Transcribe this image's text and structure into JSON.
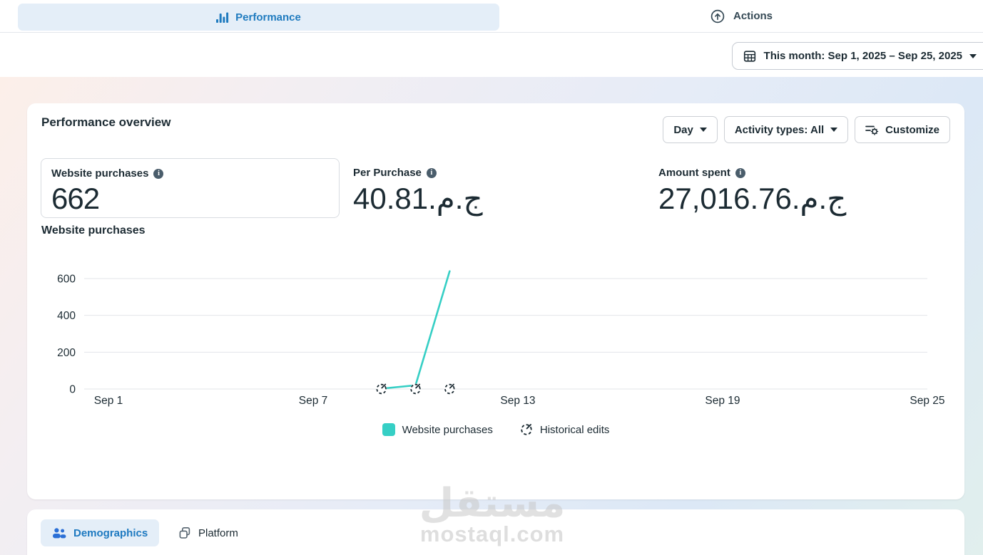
{
  "header": {
    "performance_tab": "Performance",
    "actions_tab": "Actions",
    "date_filter": "This month: Sep 1, 2025 – Sep 25, 2025"
  },
  "overview": {
    "title": "Performance overview",
    "granularity_button": "Day",
    "activity_button": "Activity types: All",
    "customize_button": "Customize",
    "metrics": [
      {
        "label": "Website purchases",
        "value": "662"
      },
      {
        "label": "Per Purchase",
        "value": "40.81.ج.م"
      },
      {
        "label": "Amount spent",
        "value": "27,016.76.ج.م"
      }
    ],
    "chart_title": "Website purchases",
    "legend": [
      {
        "label": "Website purchases"
      },
      {
        "label": "Historical edits"
      }
    ]
  },
  "chart_data": {
    "type": "line",
    "title": "Website purchases",
    "x_axis": {
      "start": "Sep 1",
      "end": "Sep 25",
      "days_total": 24,
      "ticks": [
        {
          "label": "Sep 1",
          "day": 0
        },
        {
          "label": "Sep 7",
          "day": 6
        },
        {
          "label": "Sep 13",
          "day": 12
        },
        {
          "label": "Sep 19",
          "day": 18
        },
        {
          "label": "Sep 25",
          "day": 24
        }
      ]
    },
    "y_axis": {
      "min": 0,
      "max": 600,
      "ticks": [
        0,
        200,
        400,
        600
      ]
    },
    "grid": true,
    "legend_position": "bottom",
    "series": [
      {
        "name": "Website purchases",
        "color": "#36cfc5",
        "points": [
          {
            "date": "Sep 9",
            "day": 8,
            "value": 2
          },
          {
            "date": "Sep 10",
            "day": 9,
            "value": 20
          },
          {
            "date": "Sep 11",
            "day": 10,
            "value": 640
          }
        ]
      }
    ],
    "historical_edits": [
      {
        "date": "Sep 9",
        "day": 8
      },
      {
        "date": "Sep 10",
        "day": 9
      },
      {
        "date": "Sep 11",
        "day": 10
      }
    ]
  },
  "bottom": {
    "demographics_tab": "Demographics",
    "platform_tab": "Platform"
  },
  "watermark": {
    "logo_text": "مستقل",
    "domain": "mostaql.com"
  },
  "colors": {
    "accent_teal": "#36cfc5",
    "tab_blue": "#1f7bbf",
    "tab_bg": "#e4eef8",
    "text_dark": "#1c2b33",
    "grid_gray": "#e3e5e9"
  }
}
